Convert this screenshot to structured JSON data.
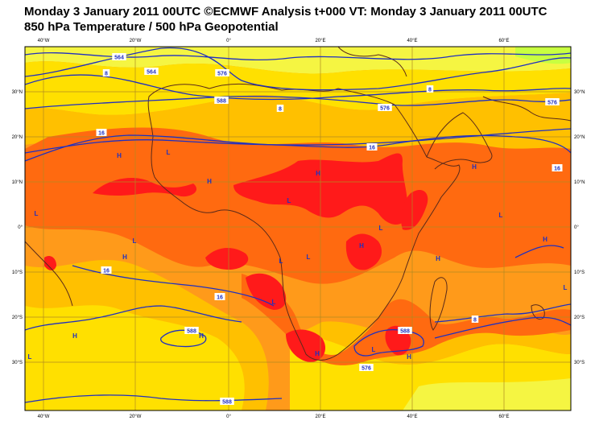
{
  "header": {
    "title_line1": "Monday 3 January 2011 00UTC ©ECMWF Analysis t+000 VT: Monday 3 January 2011 00UTC",
    "title_line2": "850 hPa Temperature / 500 hPa Geopotential"
  },
  "axes": {
    "lon_labels": [
      "40°W",
      "20°W",
      "0°",
      "20°E",
      "40°E",
      "60°E"
    ],
    "lat_labels": [
      "30°N",
      "20°N",
      "10°N",
      "0°",
      "10°S",
      "20°S",
      "30°S"
    ]
  },
  "colors": {
    "band_cold": "#f5f542",
    "band_cool": "#ffe000",
    "band_mid": "#ffc000",
    "band_warm": "#ff9a1a",
    "band_hot": "#ff6a10",
    "band_hottest": "#ff1a1a",
    "green_patch": "#c8ff40",
    "contour_line": "#2030c0",
    "coastline": "#5a2a1a",
    "grid_line": "#b08a20"
  },
  "contours": {
    "geopotential_labels": [
      "564",
      "576",
      "588",
      "564",
      "576",
      "576",
      "588",
      "588",
      "576",
      "588"
    ],
    "temperature_labels": [
      "8",
      "8",
      "8",
      "16",
      "16",
      "16",
      "16",
      "16",
      "8"
    ]
  },
  "pressure_markers": {
    "highs": [
      "H",
      "H",
      "H",
      "H",
      "H",
      "H",
      "H",
      "H",
      "H",
      "H",
      "H",
      "H"
    ],
    "lows": [
      "L",
      "L",
      "L",
      "L",
      "L",
      "L",
      "L",
      "L",
      "L",
      "L",
      "L",
      "L"
    ]
  }
}
